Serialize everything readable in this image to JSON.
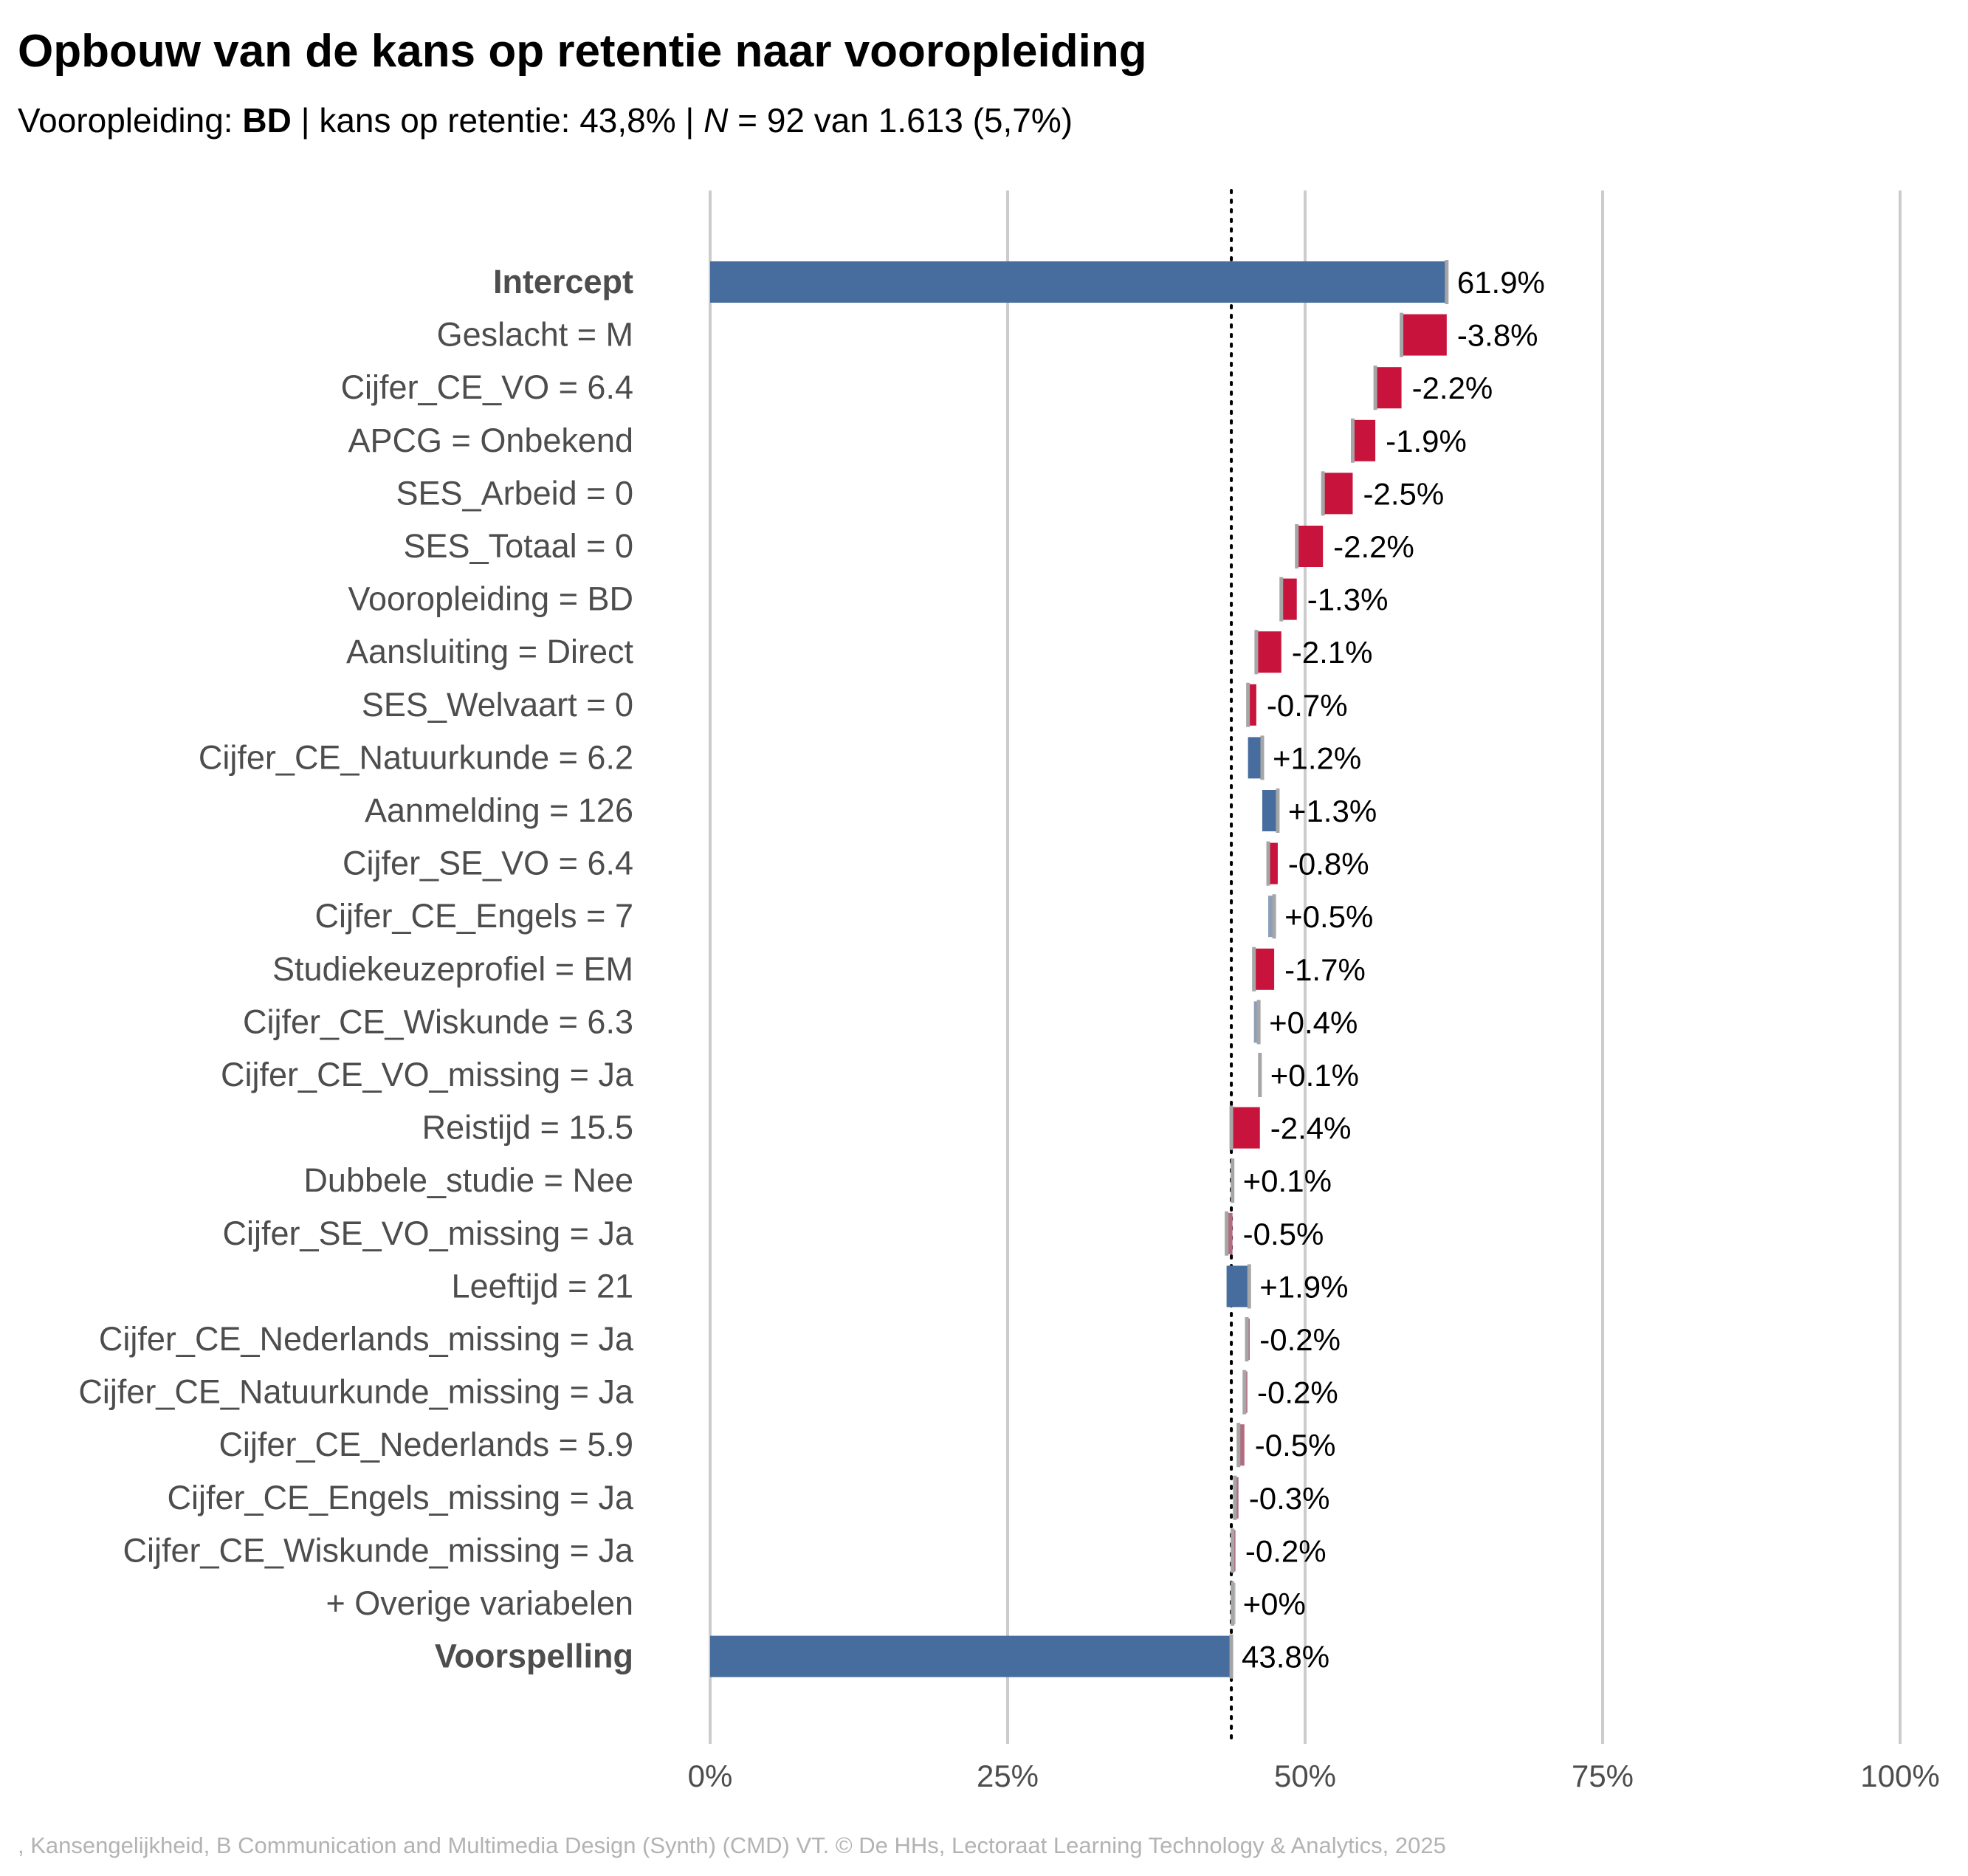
{
  "title": "Opbouw van de kans op retentie naar vooropleiding",
  "subtitle": {
    "prefix": "Vooropleiding: ",
    "group": "BD",
    "middle": " | kans op retentie: 43,8% | ",
    "n_symbol": "N",
    "suffix": " = 92 van 1.613 (5,7%)"
  },
  "caption": ", Kansengelijkheid, B Communication and Multimedia Design (Synth) (CMD) VT. © De HHs, Lectoraat Learning Technology & Analytics, 2025",
  "colors": {
    "positive": "#466d9d",
    "negative": "#c8143c",
    "total": "#466d9d",
    "small_negative": "#b36b80",
    "small_positive": "#8d9fb8",
    "neutral": "#bdbdbd",
    "grid": "#cccccc",
    "text": "#4d4d4d"
  },
  "chart_data": {
    "type": "waterfall",
    "orientation": "horizontal",
    "x_ticks": [
      "0%",
      "25%",
      "50%",
      "75%",
      "100%"
    ],
    "xlim": [
      0,
      100
    ],
    "reference_line": 43.8,
    "rows": [
      {
        "label": "Intercept",
        "value": 61.9,
        "display": "61.9%",
        "kind": "total",
        "bold": true
      },
      {
        "label": "Geslacht = M",
        "value": -3.8,
        "display": "-3.8%",
        "kind": "step"
      },
      {
        "label": "Cijfer_CE_VO = 6.4",
        "value": -2.2,
        "display": "-2.2%",
        "kind": "step"
      },
      {
        "label": "APCG = Onbekend",
        "value": -1.9,
        "display": "-1.9%",
        "kind": "step"
      },
      {
        "label": "SES_Arbeid = 0",
        "value": -2.5,
        "display": "-2.5%",
        "kind": "step"
      },
      {
        "label": "SES_Totaal = 0",
        "value": -2.2,
        "display": "-2.2%",
        "kind": "step"
      },
      {
        "label": "Vooropleiding = BD",
        "value": -1.3,
        "display": "-1.3%",
        "kind": "step"
      },
      {
        "label": "Aansluiting = Direct",
        "value": -2.1,
        "display": "-2.1%",
        "kind": "step"
      },
      {
        "label": "SES_Welvaart = 0",
        "value": -0.7,
        "display": "-0.7%",
        "kind": "step"
      },
      {
        "label": "Cijfer_CE_Natuurkunde = 6.2",
        "value": 1.2,
        "display": "+1.2%",
        "kind": "step"
      },
      {
        "label": "Aanmelding = 126",
        "value": 1.3,
        "display": "+1.3%",
        "kind": "step"
      },
      {
        "label": "Cijfer_SE_VO = 6.4",
        "value": -0.8,
        "display": "-0.8%",
        "kind": "step"
      },
      {
        "label": "Cijfer_CE_Engels = 7",
        "value": 0.5,
        "display": "+0.5%",
        "kind": "step"
      },
      {
        "label": "Studiekeuzeprofiel = EM",
        "value": -1.7,
        "display": "-1.7%",
        "kind": "step"
      },
      {
        "label": "Cijfer_CE_Wiskunde = 6.3",
        "value": 0.4,
        "display": "+0.4%",
        "kind": "step"
      },
      {
        "label": "Cijfer_CE_VO_missing = Ja",
        "value": 0.1,
        "display": "+0.1%",
        "kind": "step"
      },
      {
        "label": "Reistijd = 15.5",
        "value": -2.4,
        "display": "-2.4%",
        "kind": "step"
      },
      {
        "label": "Dubbele_studie = Nee",
        "value": 0.1,
        "display": "+0.1%",
        "kind": "step"
      },
      {
        "label": "Cijfer_SE_VO_missing = Ja",
        "value": -0.5,
        "display": "-0.5%",
        "kind": "step"
      },
      {
        "label": "Leeftijd = 21",
        "value": 1.9,
        "display": "+1.9%",
        "kind": "step"
      },
      {
        "label": "Cijfer_CE_Nederlands_missing = Ja",
        "value": -0.2,
        "display": "-0.2%",
        "kind": "step"
      },
      {
        "label": "Cijfer_CE_Natuurkunde_missing = Ja",
        "value": -0.2,
        "display": "-0.2%",
        "kind": "step"
      },
      {
        "label": "Cijfer_CE_Nederlands = 5.9",
        "value": -0.5,
        "display": "-0.5%",
        "kind": "step"
      },
      {
        "label": "Cijfer_CE_Engels_missing = Ja",
        "value": -0.3,
        "display": "-0.3%",
        "kind": "step"
      },
      {
        "label": "Cijfer_CE_Wiskunde_missing = Ja",
        "value": -0.2,
        "display": "-0.2%",
        "kind": "step"
      },
      {
        "label": "+ Overige variabelen",
        "value": 0.0,
        "display": "+0%",
        "kind": "step"
      },
      {
        "label": "Voorspelling",
        "value": 43.8,
        "display": "43.8%",
        "kind": "total",
        "bold": true
      }
    ]
  }
}
